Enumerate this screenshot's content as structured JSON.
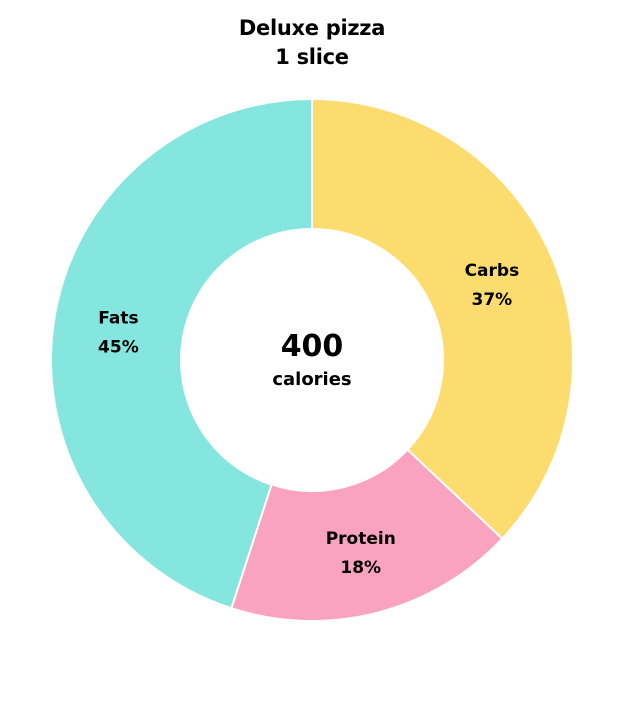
{
  "chart_data": {
    "type": "pie",
    "variant": "donut",
    "title": "Deluxe pizza",
    "subtitle": "1 slice",
    "center_value": "400",
    "center_label": "calories",
    "slices": [
      {
        "label": "Carbs",
        "value": 37,
        "value_label": "37%",
        "color": "#FCDC6E"
      },
      {
        "label": "Protein",
        "value": 18,
        "value_label": "18%",
        "color": "#F9A3C1"
      },
      {
        "label": "Fats",
        "value": 45,
        "value_label": "45%",
        "color": "#84E6DF"
      }
    ],
    "legend": "none",
    "grid": false
  }
}
